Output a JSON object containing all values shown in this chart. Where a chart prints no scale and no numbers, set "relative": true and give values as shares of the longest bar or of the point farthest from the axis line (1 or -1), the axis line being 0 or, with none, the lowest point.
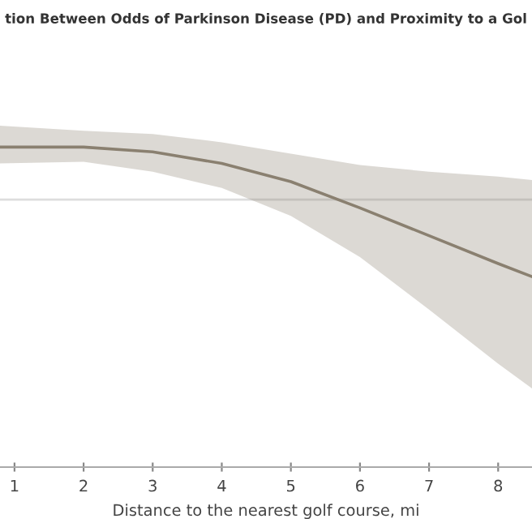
{
  "chart_data": {
    "type": "line",
    "title": "tion Between Odds of Parkinson Disease (PD) and Proximity to a Gol",
    "xlabel": "Distance to the nearest golf course, mi",
    "relative": true,
    "x": [
      0.79,
      2,
      3,
      4,
      5,
      6,
      7,
      8,
      8.49
    ],
    "series": [
      {
        "color": "#8a8070",
        "values": [
          1,
          1,
          0.985,
          0.949,
          0.892,
          0.81,
          0.723,
          0.636,
          0.595
        ],
        "lower": [
          0.949,
          0.954,
          0.923,
          0.872,
          0.785,
          0.656,
          0.492,
          0.323,
          0.246
        ],
        "upper": [
          1.067,
          1.051,
          1.041,
          1.015,
          0.979,
          0.944,
          0.923,
          0.908,
          0.897
        ]
      }
    ],
    "ref_lines": [
      {
        "axis": "y",
        "value": 0.836,
        "color": "#dddddd"
      }
    ],
    "xlim": [
      0.79,
      8.49
    ],
    "xticks": [
      1,
      2,
      3,
      4,
      5,
      6,
      7,
      8
    ],
    "grid": false
  }
}
